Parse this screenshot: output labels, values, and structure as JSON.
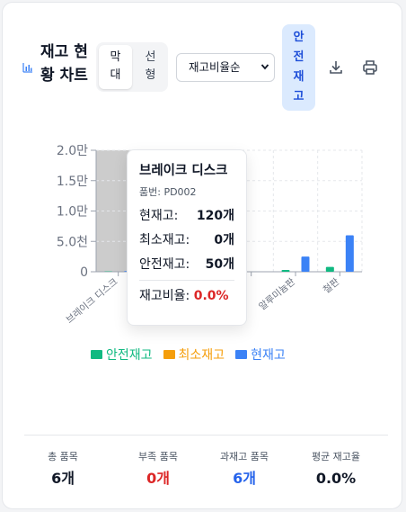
{
  "header": {
    "title": "재고 현황 차트",
    "view_toggle": {
      "bar_label": "막대",
      "line_label": "선형",
      "selected": "막대"
    },
    "sort_select": {
      "value": "재고비율순",
      "options": [
        "재고비율순"
      ]
    },
    "safety_stock_button": "안전재고",
    "icons": {
      "chart": "bar-chart-icon",
      "download": "download-icon",
      "print": "printer-icon"
    }
  },
  "chart_data": {
    "type": "bar",
    "categories": [
      "브레이크 디스크",
      "",
      "",
      "",
      "알루미늄판",
      "철판"
    ],
    "series": [
      {
        "name": "안전재고",
        "values": [
          50,
          0,
          0,
          100,
          300,
          800
        ],
        "color": "#10b981"
      },
      {
        "name": "최소재고",
        "values": [
          0,
          0,
          0,
          0,
          0,
          0
        ],
        "color": "#f59e0b"
      },
      {
        "name": "현재고",
        "values": [
          120,
          0,
          0,
          0,
          2500,
          6000
        ],
        "color": "#3b82f6"
      }
    ],
    "y_ticks": [
      "0",
      "5.0천",
      "1.0만",
      "1.5만",
      "2.0만"
    ],
    "ylim": [
      0,
      20000
    ],
    "highlight_index": 0,
    "highlight_color": "#cccccc"
  },
  "tooltip": {
    "title": "브레이크 디스크",
    "subtitle": "품번: PD002",
    "rows": [
      {
        "label": "현재고:",
        "value": "120개"
      },
      {
        "label": "최소재고:",
        "value": "0개"
      },
      {
        "label": "안전재고:",
        "value": "50개"
      }
    ],
    "ratio_label": "재고비율:",
    "ratio_value": "0.0%"
  },
  "legend": [
    {
      "label": "안전재고",
      "color": "#10b981"
    },
    {
      "label": "최소재고",
      "color": "#f59e0b"
    },
    {
      "label": "현재고",
      "color": "#3b82f6"
    }
  ],
  "footer": {
    "stats": [
      {
        "label": "총 품목",
        "value": "6개",
        "color": "#111827"
      },
      {
        "label": "부족 품목",
        "value": "0개",
        "color": "#dc2626"
      },
      {
        "label": "과재고 품목",
        "value": "6개",
        "color": "#2563eb"
      },
      {
        "label": "평균 재고율",
        "value": "0.0%",
        "color": "#111827"
      }
    ]
  }
}
